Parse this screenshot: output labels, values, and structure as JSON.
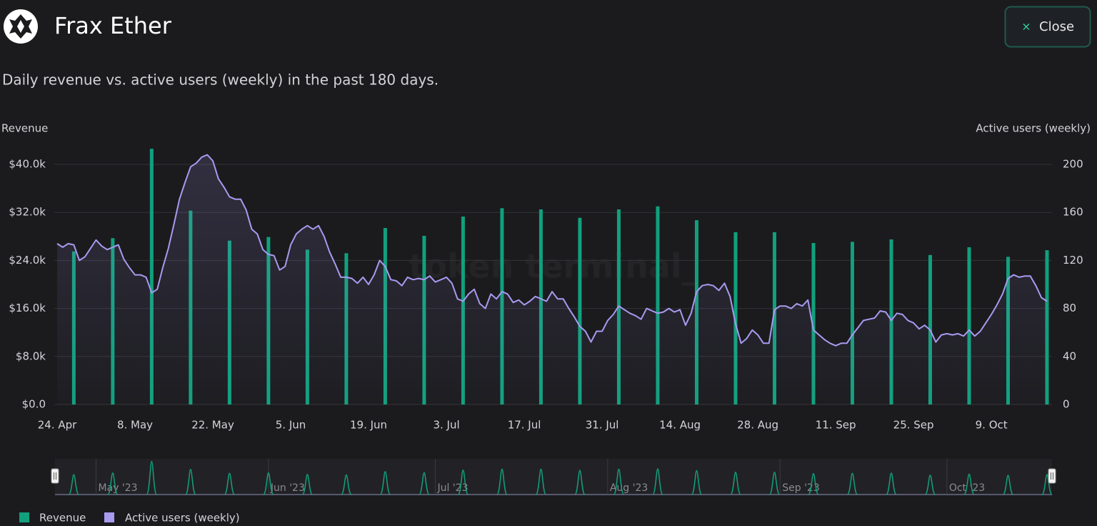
{
  "header": {
    "title": "Frax Ether",
    "close": "Close"
  },
  "watermark": "token terminal_",
  "chart_data": {
    "type": "combo",
    "subtitle": "Daily revenue vs. active users (weekly) in the past 180 days.",
    "y_label": "Revenue",
    "y2_label": "Active users (weekly)",
    "categories": [
      "24. Apr",
      null,
      null,
      null,
      null,
      null,
      null,
      null,
      null,
      null,
      null,
      null,
      null,
      null,
      "8. May",
      null,
      null,
      null,
      null,
      null,
      null,
      null,
      null,
      null,
      null,
      null,
      null,
      null,
      "22. May",
      null,
      null,
      null,
      null,
      null,
      null,
      null,
      null,
      null,
      null,
      null,
      null,
      null,
      "5. Jun",
      null,
      null,
      null,
      null,
      null,
      null,
      null,
      null,
      null,
      null,
      null,
      null,
      null,
      "19. Jun",
      null,
      null,
      null,
      null,
      null,
      null,
      null,
      null,
      null,
      null,
      null,
      null,
      null,
      "3. Jul",
      null,
      null,
      null,
      null,
      null,
      null,
      null,
      null,
      null,
      null,
      null,
      null,
      null,
      "17. Jul",
      null,
      null,
      null,
      null,
      null,
      null,
      null,
      null,
      null,
      null,
      null,
      null,
      null,
      "31. Jul",
      null,
      null,
      null,
      null,
      null,
      null,
      null,
      null,
      null,
      null,
      null,
      null,
      null,
      "14. Aug",
      null,
      null,
      null,
      null,
      null,
      null,
      null,
      null,
      null,
      null,
      null,
      null,
      null,
      "28. Aug",
      null,
      null,
      null,
      null,
      null,
      null,
      null,
      null,
      null,
      null,
      null,
      null,
      null,
      "11. Sep",
      null,
      null,
      null,
      null,
      null,
      null,
      null,
      null,
      null,
      null,
      null,
      null,
      null,
      "25. Sep",
      null,
      null,
      null,
      null,
      null,
      null,
      null,
      null,
      null,
      null,
      null,
      null,
      null,
      "9. Oct",
      null,
      null,
      null,
      null,
      null,
      null,
      null,
      null,
      null,
      null
    ],
    "series": [
      {
        "name": "Revenue",
        "type": "bar",
        "color": "#11a07d",
        "values": [
          null,
          null,
          null,
          25500,
          null,
          null,
          null,
          null,
          null,
          null,
          27700,
          null,
          null,
          null,
          null,
          null,
          null,
          42600,
          null,
          null,
          null,
          null,
          null,
          null,
          32300,
          null,
          null,
          null,
          null,
          null,
          null,
          27300,
          null,
          null,
          null,
          null,
          null,
          null,
          27900,
          null,
          null,
          null,
          null,
          null,
          null,
          25800,
          null,
          null,
          null,
          null,
          null,
          null,
          25200,
          null,
          null,
          null,
          null,
          null,
          null,
          29400,
          null,
          null,
          null,
          null,
          null,
          null,
          28100,
          null,
          null,
          null,
          null,
          null,
          null,
          31300,
          null,
          null,
          null,
          null,
          null,
          null,
          32700,
          null,
          null,
          null,
          null,
          null,
          null,
          32500,
          null,
          null,
          null,
          null,
          null,
          null,
          31100,
          null,
          null,
          null,
          null,
          null,
          null,
          32500,
          null,
          null,
          null,
          null,
          null,
          null,
          33000,
          null,
          null,
          null,
          null,
          null,
          null,
          30700,
          null,
          null,
          null,
          null,
          null,
          null,
          28700,
          null,
          null,
          null,
          null,
          null,
          null,
          28700,
          null,
          null,
          null,
          null,
          null,
          null,
          26900,
          null,
          null,
          null,
          null,
          null,
          null,
          27100,
          null,
          null,
          null,
          null,
          null,
          null,
          27500,
          null,
          null,
          null,
          null,
          null,
          null,
          24900,
          null,
          null,
          null,
          null,
          null,
          null,
          26200,
          null,
          null,
          null,
          null,
          null,
          null,
          24600,
          null,
          null,
          null,
          null,
          null,
          null,
          25700
        ]
      },
      {
        "name": "Active users (weekly)",
        "type": "line",
        "axis": "y2",
        "color": "#a99af0",
        "values": [
          134,
          131,
          134,
          133,
          120,
          123,
          130,
          137,
          132,
          129,
          131,
          133,
          121,
          114,
          108,
          108,
          106,
          93,
          96,
          114,
          130,
          150,
          171,
          185,
          198,
          201,
          206,
          208,
          203,
          188,
          181,
          173,
          171,
          171,
          162,
          146,
          142,
          129,
          125,
          124,
          112,
          115,
          133,
          142,
          146,
          149,
          146,
          149,
          140,
          127,
          117,
          106,
          106,
          105,
          101,
          106,
          100,
          108,
          120,
          115,
          104,
          103,
          99,
          106,
          104,
          105,
          104,
          107,
          102,
          104,
          106,
          101,
          88,
          86,
          92,
          96,
          84,
          80,
          92,
          88,
          94,
          92,
          85,
          87,
          83,
          86,
          90,
          88,
          86,
          94,
          88,
          88,
          80,
          73,
          65,
          61,
          52,
          61,
          61,
          70,
          75,
          82,
          79,
          76,
          74,
          71,
          80,
          78,
          76,
          77,
          80,
          77,
          79,
          66,
          76,
          94,
          99,
          100,
          99,
          95,
          101,
          90,
          67,
          51,
          55,
          62,
          58,
          51,
          51,
          79,
          82,
          82,
          80,
          84,
          82,
          87,
          62,
          58,
          54,
          51,
          49,
          51,
          51,
          58,
          64,
          70,
          71,
          72,
          78,
          77,
          70,
          76,
          75,
          70,
          68,
          63,
          66,
          62,
          52,
          58,
          59,
          58,
          59,
          57,
          62,
          57,
          61,
          68,
          75,
          83,
          92,
          105,
          108,
          106,
          107,
          107,
          99,
          89,
          86
        ]
      }
    ],
    "ylim": [
      0,
      44000
    ],
    "yticks": [
      {
        "value": 0,
        "label": "$0.0"
      },
      {
        "value": 8000,
        "label": "$8.0k"
      },
      {
        "value": 16000,
        "label": "$16.0k"
      },
      {
        "value": 24000,
        "label": "$24.0k"
      },
      {
        "value": 32000,
        "label": "$32.0k"
      },
      {
        "value": 40000,
        "label": "$40.0k"
      }
    ],
    "y2lim": [
      0,
      220
    ],
    "y2ticks": [
      0,
      40,
      80,
      120,
      160,
      200
    ],
    "grid": true,
    "navigator_labels": [
      "May '23",
      "Jun '23",
      "Jul '23",
      "Aug '23",
      "Sep '23",
      "Oct '23"
    ]
  }
}
